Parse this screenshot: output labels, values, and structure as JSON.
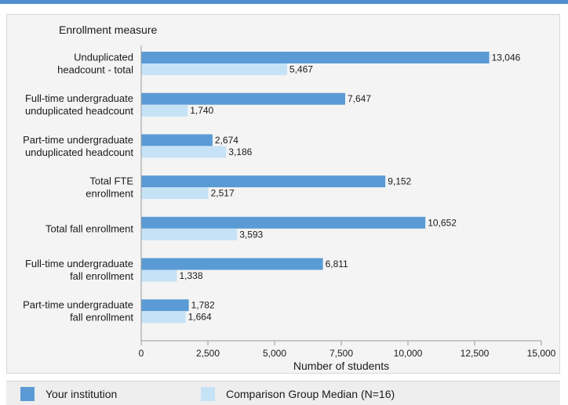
{
  "chart_data": {
    "type": "bar",
    "orientation": "horizontal",
    "title": "Enrollment measure",
    "xlabel": "Number of students",
    "xlim": [
      0,
      15000
    ],
    "xticks": [
      0,
      2500,
      5000,
      7500,
      10000,
      12500,
      15000
    ],
    "xtick_labels": [
      "0",
      "2,500",
      "5,000",
      "7,500",
      "10,000",
      "12,500",
      "15,000"
    ],
    "categories": [
      [
        "Unduplicated",
        "headcount - total"
      ],
      [
        "Full-time undergraduate",
        "unduplicated headcount"
      ],
      [
        "Part-time undergraduate",
        "unduplicated headcount"
      ],
      [
        "Total FTE",
        "enrollment"
      ],
      [
        "Total fall enrollment"
      ],
      [
        "Full-time undergraduate",
        "fall enrollment"
      ],
      [
        "Part-time undergraduate",
        "fall enrollment"
      ]
    ],
    "series": [
      {
        "name": "Your institution",
        "color": "#5b9bd5",
        "values": [
          13046,
          7647,
          2674,
          9152,
          10652,
          6811,
          1782
        ],
        "labels": [
          "13,046",
          "7,647",
          "2,674",
          "9,152",
          "10,652",
          "6,811",
          "1,782"
        ]
      },
      {
        "name": "Comparison Group Median (N=16)",
        "color": "#c6e2f7",
        "values": [
          5467,
          1740,
          3186,
          2517,
          3593,
          1338,
          1664
        ],
        "labels": [
          "5,467",
          "1,740",
          "3,186",
          "2,517",
          "3,593",
          "1,338",
          "1,664"
        ]
      }
    ],
    "grid": false,
    "legend_position": "bottom"
  },
  "legend": {
    "items": [
      {
        "label": "Your institution",
        "color": "#5b9bd5"
      },
      {
        "label": "Comparison Group Median (N=16)",
        "color": "#c6e2f7"
      }
    ]
  },
  "colors": {
    "accent_rule": "#4f8fcf",
    "panel_bg": "#f4f4f4"
  }
}
